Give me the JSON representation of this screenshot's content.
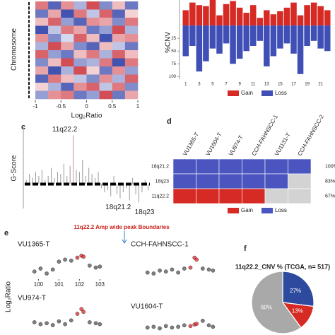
{
  "chart_data": [
    {
      "type": "heatmap",
      "ylabel": "Chromosome",
      "xlabel": "Log₂Ratio",
      "xlim": [
        -1,
        1
      ],
      "xticks": [
        -1,
        -0.5,
        0,
        0.5,
        1
      ],
      "values": [
        [
          0.6,
          -0.8,
          0.5,
          -0.4,
          0.8,
          -0.6,
          0.3,
          -0.7
        ],
        [
          -0.7,
          0.4,
          -0.9,
          0.6,
          -0.3,
          0.7,
          -0.8,
          0.2
        ],
        [
          0.3,
          0.7,
          -0.5,
          -0.8,
          0.5,
          0.4,
          -0.6,
          0.6
        ],
        [
          -0.9,
          -0.3,
          0.6,
          0.4,
          -0.7,
          -0.5,
          0.8,
          -0.4
        ],
        [
          0.5,
          -0.6,
          -0.2,
          0.7,
          0.3,
          -0.9,
          0.4,
          0.5
        ],
        [
          -0.4,
          0.8,
          0.4,
          -0.6,
          -0.8,
          0.3,
          -0.3,
          -0.7
        ],
        [
          0.7,
          -0.5,
          -0.7,
          0.3,
          0.6,
          -0.4,
          0.7,
          0.3
        ],
        [
          -0.6,
          0.3,
          0.8,
          -0.5,
          -0.4,
          0.6,
          -0.9,
          0.6
        ],
        [
          0.4,
          -0.9,
          -0.4,
          0.8,
          0.2,
          -0.7,
          0.5,
          -0.5
        ],
        [
          -0.8,
          0.6,
          0.3,
          -0.3,
          -0.6,
          0.5,
          -0.4,
          0.7
        ],
        [
          0.2,
          -0.4,
          -0.8,
          0.5,
          0.7,
          -0.3,
          0.6,
          -0.6
        ],
        [
          -0.5,
          0.5,
          0.6,
          -0.7,
          -0.5,
          0.8,
          -0.7,
          0.4
        ]
      ]
    },
    {
      "type": "bar",
      "ylabel": "%CNV",
      "categories": [
        "1",
        null,
        "3",
        null,
        "5",
        null,
        "7",
        null,
        "9",
        null,
        "11",
        null,
        "13",
        null,
        "15",
        null,
        "17",
        null,
        "19",
        null,
        "21",
        null
      ],
      "series": [
        {
          "name": "Gain",
          "color": "#d62a24",
          "values": [
            30,
            45,
            40,
            38,
            50,
            20,
            42,
            48,
            35,
            25,
            40,
            15,
            30,
            22,
            28,
            35,
            45,
            20,
            40,
            45,
            38,
            30
          ]
        },
        {
          "name": "Loss",
          "color": "#3f4fb5",
          "values": [
            -60,
            -40,
            -90,
            -70,
            -45,
            -55,
            -35,
            -75,
            -65,
            -50,
            -40,
            -30,
            -80,
            -60,
            -45,
            -35,
            -55,
            -95,
            -40,
            -30,
            -45,
            -50
          ]
        }
      ],
      "ylim": [
        -105,
        50
      ],
      "yticks": [
        {
          "value": -25,
          "label": "25"
        },
        {
          "value": -50,
          "label": "50"
        },
        {
          "value": -75,
          "label": "75"
        },
        {
          "value": -100,
          "label": "100"
        }
      ]
    },
    {
      "type": "bar",
      "panel": "c",
      "ylabel": "G-Score",
      "ylim": [
        -0.6,
        1.4
      ],
      "values": [
        0.1,
        0.25,
        0.15,
        0.3,
        0.2,
        0.35,
        0.1,
        0.2,
        0.4,
        0.15,
        0.3,
        0.25,
        0.5,
        0.2,
        0.45,
        1.2,
        0.35,
        0.3,
        0.6,
        0.2,
        0.4,
        0.25,
        0.15,
        0.3,
        -0.1,
        -0.2,
        -0.15,
        -0.3,
        0.2,
        -0.25,
        -0.35,
        -0.2,
        -0.1,
        -0.4,
        0.15,
        -0.25,
        -0.45,
        -0.2,
        0.1,
        -0.15
      ],
      "annotations": [
        {
          "text": "11q22.2",
          "index": 15
        },
        {
          "text": "18q21.2",
          "index": 33
        },
        {
          "text": "18q23",
          "index": 36
        }
      ]
    },
    {
      "type": "oncoprint",
      "panel": "d",
      "columns": [
        "VU1365-T",
        "VU1604-T",
        "VU974-T",
        "CCH-FAHNSCC-1",
        "VU1131-T",
        "CCH-FAHNSCC-2"
      ],
      "rows": [
        "18q21.2",
        "18q23",
        "11q22.2"
      ],
      "cells": [
        [
          "Loss",
          "Loss",
          "Loss",
          "Loss",
          "Loss",
          "Loss"
        ],
        [
          "Loss",
          "Loss",
          "Loss",
          "Loss",
          "Loss",
          null
        ],
        [
          "Gain",
          "Gain",
          "Gain",
          "Gain",
          null,
          null
        ]
      ],
      "values": [
        100,
        83,
        67
      ],
      "value_labels": [
        "100%",
        "83%",
        "67%"
      ],
      "series": [
        {
          "name": "Gain",
          "color": "#d62a24"
        },
        {
          "name": "Loss",
          "color": "#4b55c0"
        }
      ]
    },
    {
      "type": "scatter",
      "panel": "e",
      "title": "11q22.2 Amp wide peak Boundaries",
      "ylabel": "Log₂Ratio",
      "xlim": [
        99.5,
        103.3
      ],
      "ylim": [
        -1.5,
        1.5
      ],
      "peak": [
        101.8,
        102.3
      ],
      "subplots": [
        {
          "title": "VU1365-T",
          "xticks": [
            100,
            101,
            102,
            103
          ],
          "x": [
            99.8,
            100.1,
            100.4,
            100.7,
            101.0,
            101.3,
            101.6,
            101.9,
            102.1,
            102.2,
            102.5,
            102.8,
            103.0
          ],
          "values": [
            -0.8,
            -0.5,
            -1.0,
            -0.6,
            0.2,
            0.4,
            0.3,
            0.6,
            0.8,
            0.7,
            -0.2,
            -0.4,
            -0.3
          ]
        },
        {
          "title": "CCH-FAHNSCC-1",
          "x": [
            99.8,
            100.1,
            100.4,
            100.7,
            101.0,
            101.3,
            101.6,
            101.9,
            102.1,
            102.2,
            102.5,
            102.8,
            103.0
          ],
          "values": [
            -0.9,
            -1.0,
            -0.7,
            -0.8,
            -0.6,
            -0.9,
            -0.5,
            -0.4,
            0.6,
            0.4,
            -0.5,
            -0.6,
            -0.7
          ]
        },
        {
          "title": "VU974-T",
          "x": [
            99.8,
            100.1,
            100.4,
            100.7,
            101.0,
            101.3,
            101.6,
            101.9,
            102.1,
            102.2,
            102.5,
            102.8,
            103.0
          ],
          "values": [
            -0.6,
            -0.8,
            -0.7,
            -0.9,
            -0.5,
            -0.8,
            -0.4,
            0.3,
            0.8,
            0.5,
            -0.6,
            -0.7,
            -0.8
          ]
        },
        {
          "title": "VU1604-T",
          "x": [
            99.8,
            100.1,
            100.4,
            100.7,
            101.0,
            101.3,
            101.6,
            101.9,
            102.1,
            102.2,
            102.5,
            102.8,
            103.0
          ],
          "values": [
            -0.7,
            -0.6,
            -0.8,
            -0.5,
            -0.7,
            -0.6,
            -0.4,
            -0.5,
            -0.3,
            -0.2,
            0.2,
            -0.4,
            -0.6
          ]
        }
      ]
    },
    {
      "type": "pie",
      "panel": "f",
      "title": "11q22.2_CNV % (TCGA, n= 517)",
      "values": [
        27,
        13,
        60
      ],
      "value_labels": [
        "27%",
        "13%",
        "60%"
      ],
      "colors": [
        "#2e4a9e",
        "#d62a24",
        "#a9a9a9"
      ]
    }
  ]
}
